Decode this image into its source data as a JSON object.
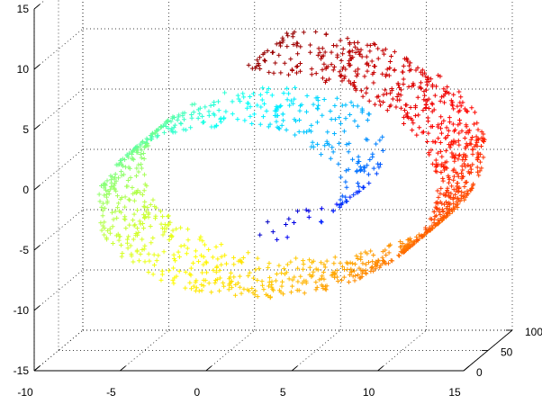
{
  "chart_data": {
    "type": "scatter",
    "title": "",
    "xlabel": "",
    "ylabel": "",
    "zlabel": "",
    "dimensions": 3,
    "marker": "+",
    "colormap": "jet",
    "color_by": "position along the spiral",
    "grid": true,
    "axes": {
      "x": {
        "range": [
          -10,
          15
        ],
        "ticks": [
          "-10",
          "-5",
          "0",
          "5",
          "10",
          "15"
        ]
      },
      "y": {
        "range": [
          0,
          100
        ],
        "ticks": [
          "0",
          "50",
          "100"
        ]
      },
      "z": {
        "range": [
          -15,
          15
        ],
        "ticks": [
          "-15",
          "-10",
          "-5",
          "0",
          "5",
          "10",
          "15"
        ]
      }
    },
    "series": [
      {
        "description": "Swiss roll point cloud (approx. 1500 points, width along y from 0 to 100)",
        "points_sample": [
          {
            "x": 4.7,
            "y": 50,
            "z": -4.7,
            "color": "#00008f"
          },
          {
            "x": 9.4,
            "y": 50,
            "z": 3.9,
            "color": "#0030ff"
          },
          {
            "x": 7.5,
            "y": 50,
            "z": 9.8,
            "color": "#0090ff"
          },
          {
            "x": -0.2,
            "y": 50,
            "z": 11.6,
            "color": "#20e0ff"
          },
          {
            "x": -8.4,
            "y": 50,
            "z": 7.3,
            "color": "#40ffc0"
          },
          {
            "x": -11.5,
            "y": 50,
            "z": -2.6,
            "color": "#80ff80"
          },
          {
            "x": -6.2,
            "y": 50,
            "z": -10.8,
            "color": "#ffff40"
          },
          {
            "x": 4.9,
            "y": 50,
            "z": -12.8,
            "color": "#ffd000"
          },
          {
            "x": 12.8,
            "y": 50,
            "z": -5.0,
            "color": "#ff8000"
          },
          {
            "x": 14.0,
            "y": 50,
            "z": 7.5,
            "color": "#ff3000"
          },
          {
            "x": 7.5,
            "y": 50,
            "z": 16.5,
            "color": "#d00000"
          },
          {
            "x": 2.1,
            "y": 50,
            "z": 18.5,
            "color": "#800000"
          }
        ]
      }
    ]
  }
}
